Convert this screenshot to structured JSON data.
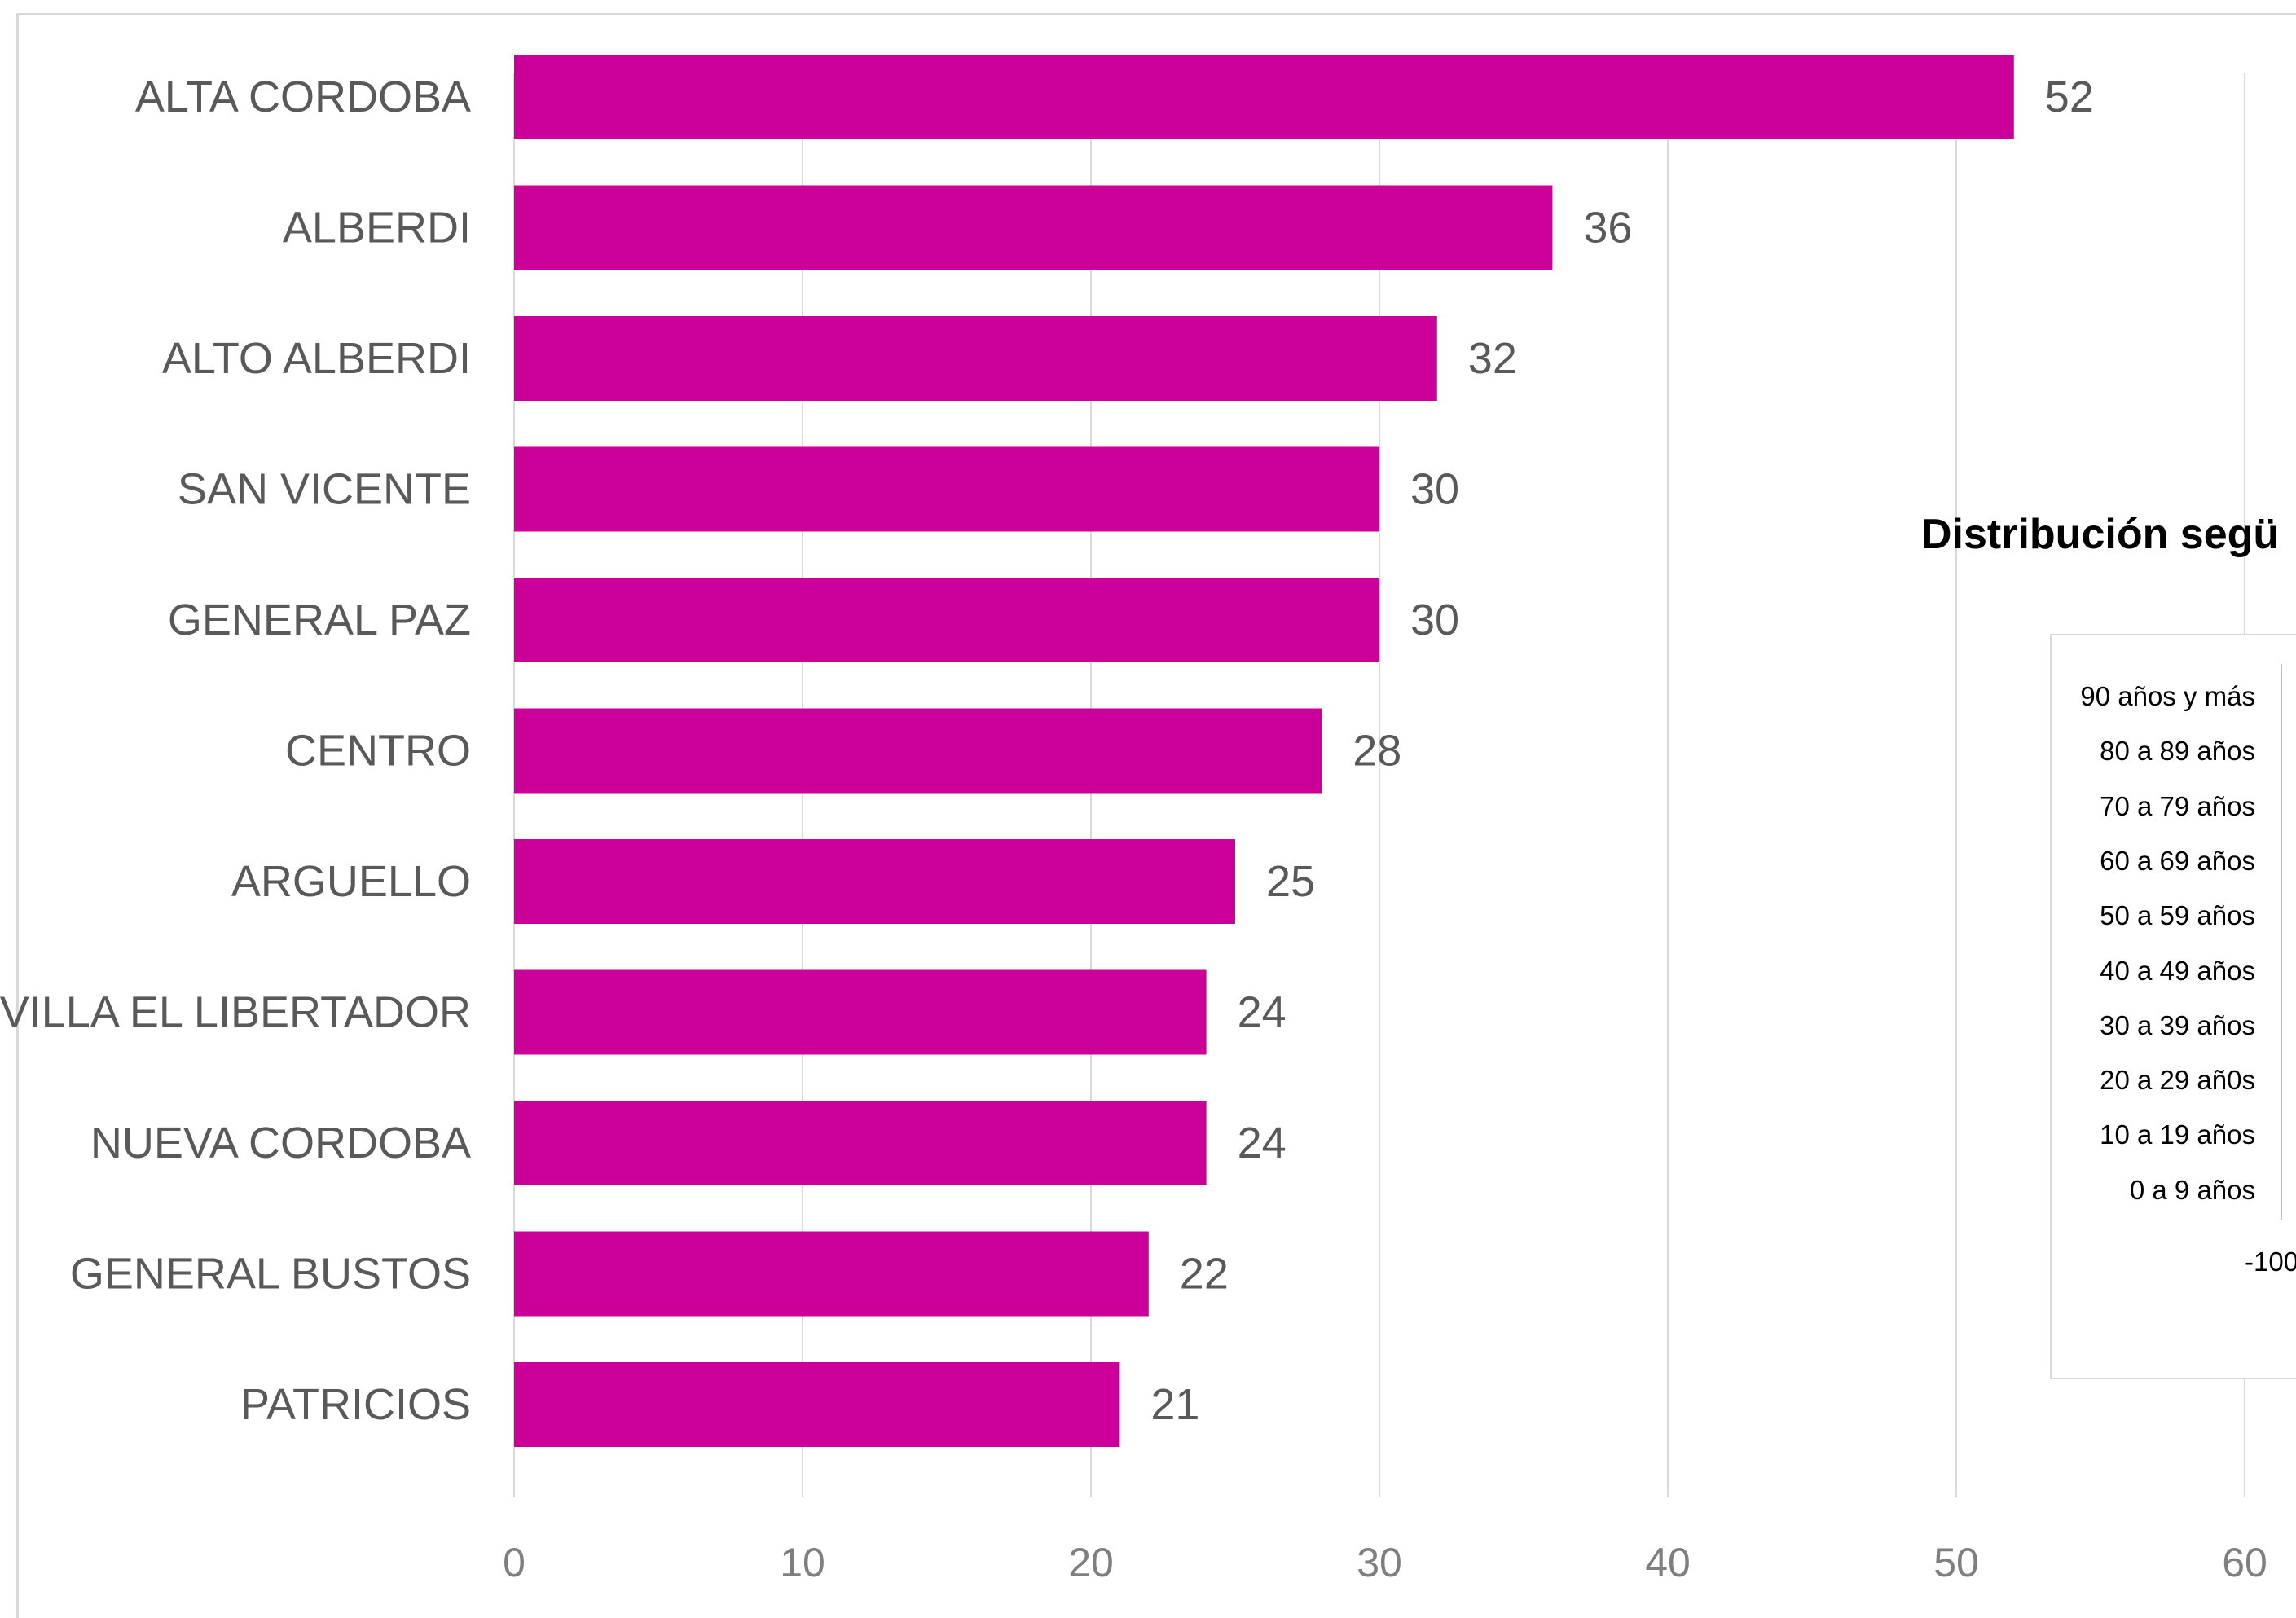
{
  "chart_data": [
    {
      "type": "bar",
      "orientation": "horizontal",
      "categories": [
        "ALTA CORDOBA",
        "ALBERDI",
        "ALTO ALBERDI",
        "SAN VICENTE",
        "GENERAL PAZ",
        "CENTRO",
        "ARGUELLO",
        "VILLA EL LIBERTADOR",
        "NUEVA CORDOBA",
        "GENERAL BUSTOS",
        "PATRICIOS"
      ],
      "values": [
        52,
        36,
        32,
        30,
        30,
        28,
        25,
        24,
        24,
        22,
        21
      ],
      "xlim": [
        0,
        60
      ],
      "xticks": [
        "0",
        "10",
        "20",
        "30",
        "40",
        "50",
        "60"
      ],
      "grid": true,
      "bar_color": "#cc0099",
      "data_labels": true
    },
    {
      "type": "bar",
      "title": "Distribución segü",
      "categories": [
        "90 años y más",
        "80 a 89 años",
        "70 a 79 años",
        "60 a 69 años",
        "50 a 59 años",
        "40 a 49 años",
        "30 a 39 años",
        "20 a 29 añ0s",
        "10 a 19 años",
        "0 a 9 años"
      ],
      "xticks": [
        "-100"
      ],
      "partially_visible": true
    }
  ]
}
